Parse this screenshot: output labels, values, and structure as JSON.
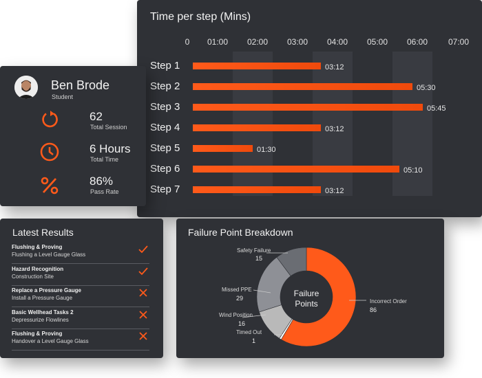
{
  "profile": {
    "name": "Ben Brode",
    "role": "Student",
    "stats": [
      {
        "icon": "refresh-icon",
        "value": "62",
        "label": "Total Session"
      },
      {
        "icon": "clock-icon",
        "value": "6 Hours",
        "label": "Total Time"
      },
      {
        "icon": "percent-icon",
        "value": "86%",
        "label": "Pass Rate"
      }
    ]
  },
  "time_per_step": {
    "title": "Time per step (Mins)",
    "ticks": [
      "0",
      "01:00",
      "02:00",
      "03:00",
      "04:00",
      "05:00",
      "06:00",
      "07:00"
    ],
    "steps": [
      {
        "label": "Step 1",
        "value": "03:12",
        "minutes": 3.2
      },
      {
        "label": "Step 2",
        "value": "05:30",
        "minutes": 5.5
      },
      {
        "label": "Step 3",
        "value": "05:45",
        "minutes": 5.75
      },
      {
        "label": "Step 4",
        "value": "03:12",
        "minutes": 3.2
      },
      {
        "label": "Step 5",
        "value": "01:30",
        "minutes": 1.5
      },
      {
        "label": "Step 6",
        "value": "05:10",
        "minutes": 5.1667
      },
      {
        "label": "Step 7",
        "value": "03:12",
        "minutes": 3.2
      }
    ]
  },
  "latest_results": {
    "title": "Latest Results",
    "items": [
      {
        "title": "Flushing & Proving",
        "subtitle": "Flushing a Level Gauge Glass",
        "status": "pass"
      },
      {
        "title": "Hazard Recognition",
        "subtitle": "Construction Site",
        "status": "pass"
      },
      {
        "title": "Replace a Pressure Gauge",
        "subtitle": "Install a Pressure Gauge",
        "status": "fail"
      },
      {
        "title": "Basic Wellhead Tasks 2",
        "subtitle": "Depressurize Flowlines",
        "status": "fail"
      },
      {
        "title": "Flushing & Proving",
        "subtitle": "Handover a Level Gauge Glass",
        "status": "fail"
      }
    ]
  },
  "failure_breakdown": {
    "title": "Failure Point Breakdown",
    "center_label_line1": "Failure",
    "center_label_line2": "Points",
    "segments": [
      {
        "label": "Incorrect Order",
        "value": "86"
      },
      {
        "label": "Timed Out",
        "value": "1"
      },
      {
        "label": "Wind Position",
        "value": "16"
      },
      {
        "label": "Missed PPE",
        "value": "29"
      },
      {
        "label": "Safety Failure",
        "value": "15"
      }
    ]
  },
  "colors": {
    "accent": "#ff5a1a",
    "card": "#2f3136",
    "band": "#393b41"
  },
  "chart_data": [
    {
      "type": "bar",
      "title": "Time per step (Mins)",
      "categories": [
        "Step 1",
        "Step 2",
        "Step 3",
        "Step 4",
        "Step 5",
        "Step 6",
        "Step 7"
      ],
      "values": [
        3.2,
        5.5,
        5.75,
        3.2,
        1.5,
        5.1667,
        3.2
      ],
      "value_labels": [
        "03:12",
        "05:30",
        "05:45",
        "03:12",
        "01:30",
        "05:10",
        "03:12"
      ],
      "xlim": [
        0,
        7
      ],
      "orientation": "horizontal"
    },
    {
      "type": "pie",
      "title": "Failure Point Breakdown",
      "categories": [
        "Incorrect Order",
        "Timed Out",
        "Wind Position",
        "Missed PPE",
        "Safety Failure"
      ],
      "values": [
        86,
        1,
        16,
        29,
        15
      ],
      "donut": true
    }
  ]
}
